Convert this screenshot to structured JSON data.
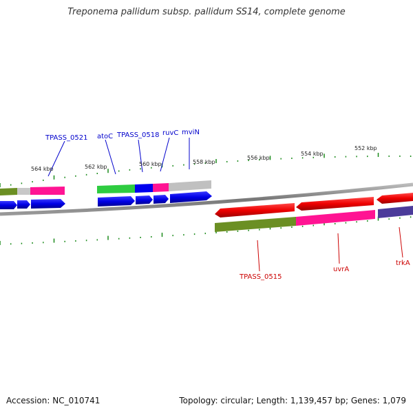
{
  "title": "Treponema pallidum subsp. pallidum SS14, complete genome",
  "footer": {
    "accession": "Accession: NC_010741",
    "stats": "Topology: circular; Length: 1,139,457 bp; Genes: 1,079"
  },
  "scale_labels": [
    "564 kbp",
    "562 kbp",
    "560 kbp",
    "558 kbp",
    "556 kbp",
    "554 kbp",
    "552 kbp"
  ],
  "gene_labels": [
    {
      "text": "TPASS_0521",
      "color": "#0000cc"
    },
    {
      "text": "atoC",
      "color": "#0000cc"
    },
    {
      "text": "TPASS_0518",
      "color": "#0000cc"
    },
    {
      "text": "ruvC",
      "color": "#0000cc"
    },
    {
      "text": "mviN",
      "color": "#0000cc"
    },
    {
      "text": "TPASS_0515",
      "color": "#cc0000"
    },
    {
      "text": "uvrA",
      "color": "#cc0000"
    },
    {
      "text": "trkA",
      "color": "#cc0000"
    }
  ],
  "colors": {
    "forward_gene": "#0000ee",
    "reverse_gene": "#ee0000",
    "backbone": "#888888",
    "ticks": "#1a8a1a"
  }
}
